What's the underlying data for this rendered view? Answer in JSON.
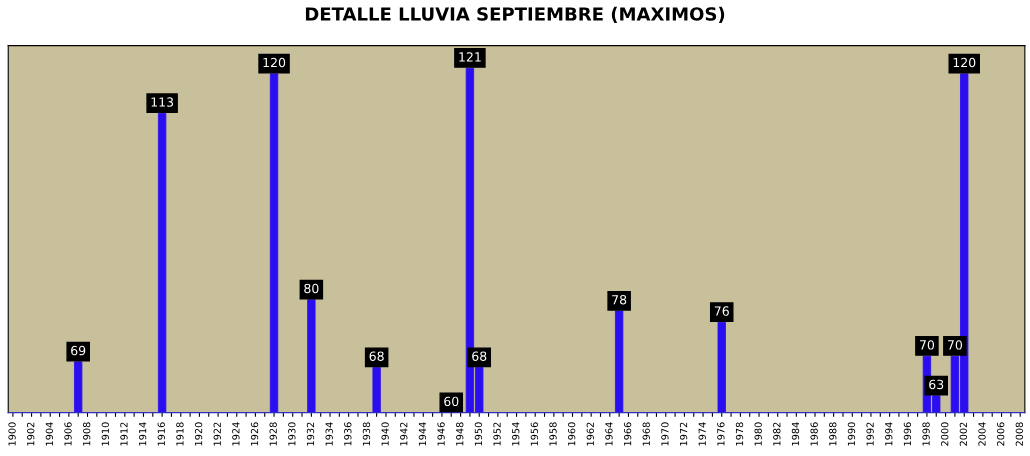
{
  "chart_data": {
    "type": "bar",
    "title": "DETALLE LLUVIA SEPTIEMBRE (MAXIMOS)",
    "categories": [
      "1900",
      null,
      "1902",
      null,
      "1904",
      null,
      "1906",
      null,
      "1908",
      null,
      "1910",
      null,
      "1912",
      null,
      "1914",
      null,
      "1916",
      null,
      "1918",
      null,
      "1920",
      null,
      "1922",
      null,
      "1924",
      null,
      "1926",
      null,
      "1928",
      null,
      "1930",
      null,
      "1932",
      null,
      "1934",
      null,
      "1936",
      null,
      "1938",
      null,
      "1940",
      null,
      "1942",
      null,
      "1944",
      null,
      "1946",
      null,
      "1948",
      null,
      "1950",
      null,
      "1952",
      null,
      "1954",
      null,
      "1956",
      null,
      "1958",
      null,
      "1960",
      null,
      "1962",
      null,
      "1964",
      null,
      "1966",
      null,
      "1968",
      null,
      "1970",
      null,
      "1972",
      null,
      "1974",
      null,
      "1976",
      null,
      "1978",
      null,
      "1980",
      null,
      "1982",
      null,
      "1984",
      null,
      "1986",
      null,
      "1988",
      null,
      "1990",
      null,
      "1992",
      null,
      "1994",
      null,
      "1996",
      null,
      "1998",
      null,
      "2000",
      null,
      "2002",
      null,
      "2004",
      null,
      "2006",
      null,
      "2008"
    ],
    "values": [
      null,
      null,
      null,
      null,
      null,
      null,
      null,
      69,
      null,
      null,
      null,
      null,
      null,
      null,
      null,
      null,
      113,
      null,
      null,
      null,
      null,
      null,
      null,
      null,
      null,
      null,
      null,
      null,
      120,
      null,
      null,
      null,
      80,
      null,
      null,
      null,
      null,
      null,
      null,
      68,
      null,
      null,
      null,
      null,
      null,
      null,
      null,
      60,
      null,
      121,
      68,
      null,
      null,
      null,
      null,
      null,
      null,
      null,
      null,
      null,
      null,
      null,
      null,
      null,
      null,
      78,
      null,
      null,
      null,
      null,
      null,
      null,
      null,
      null,
      null,
      null,
      76,
      null,
      null,
      null,
      null,
      null,
      null,
      null,
      null,
      null,
      null,
      null,
      null,
      null,
      null,
      null,
      null,
      null,
      null,
      null,
      null,
      null,
      70,
      63,
      null,
      70,
      120,
      null,
      null,
      null,
      null,
      null,
      null
    ],
    "color": "#2a0ef0",
    "ylim": [
      60,
      125
    ],
    "tick_labels": "x",
    "data_labels": true,
    "grid": false
  }
}
